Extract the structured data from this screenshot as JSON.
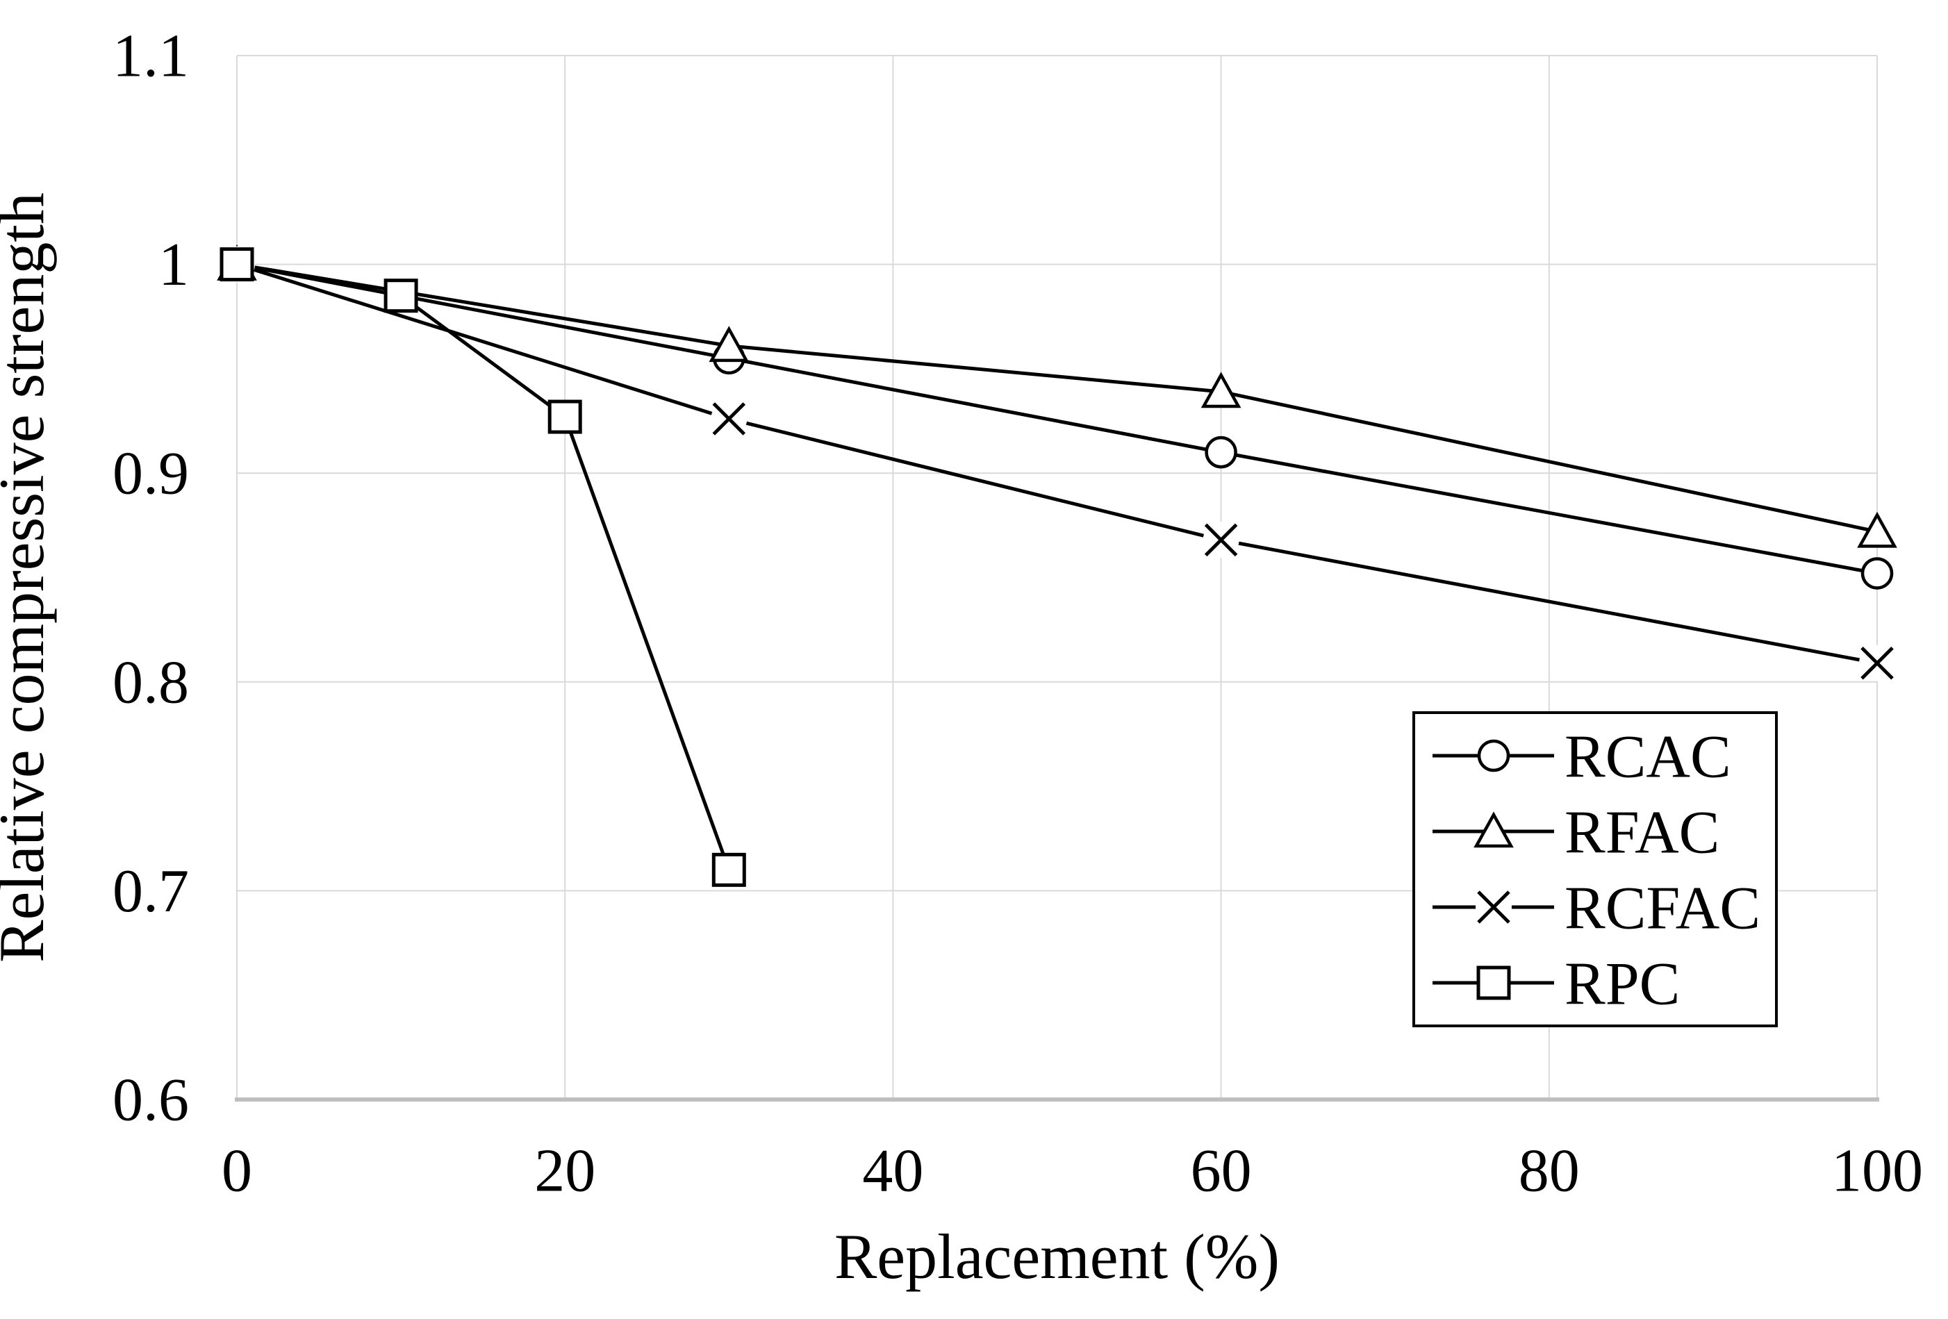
{
  "chart_data": {
    "type": "line",
    "title": "",
    "xlabel": "Replacement (%)",
    "ylabel": "Relative compressive strength",
    "xlim": [
      0,
      100
    ],
    "ylim": [
      0.6,
      1.1
    ],
    "xticks": [
      0,
      20,
      40,
      60,
      80,
      100
    ],
    "xtick_labels": [
      "0",
      "20",
      "40",
      "60",
      "80",
      "100"
    ],
    "yticks": [
      0.6,
      0.7,
      0.8,
      0.9,
      1.0,
      1.1
    ],
    "ytick_labels": [
      "0.6",
      "0.7",
      "0.8",
      "0.9",
      "1",
      "1.1"
    ],
    "grid": true,
    "legend_position": "inside-bottom-right",
    "legend_entries": [
      "RCAC",
      "RFAC",
      "RCFAC",
      "RPC"
    ],
    "series": [
      {
        "name": "RCAC",
        "marker": "circle",
        "x": [
          0,
          30,
          60,
          100
        ],
        "y": [
          1.0,
          0.955,
          0.91,
          0.852
        ]
      },
      {
        "name": "RFAC",
        "marker": "triangle",
        "x": [
          0,
          30,
          60,
          100
        ],
        "y": [
          1.0,
          0.961,
          0.939,
          0.872
        ]
      },
      {
        "name": "RCFAC",
        "marker": "x",
        "x": [
          0,
          30,
          60,
          100
        ],
        "y": [
          1.0,
          0.926,
          0.868,
          0.809
        ]
      },
      {
        "name": "RPC",
        "marker": "square",
        "x": [
          0,
          10,
          20,
          30
        ],
        "y": [
          1.0,
          0.985,
          0.927,
          0.71
        ]
      }
    ],
    "colors": {
      "series": "#000000",
      "gridline": "#D9D9D9",
      "axis_line": "#BFBFBF",
      "text": "#000000",
      "background": "#FFFFFF",
      "marker_fill": "#FFFFFF"
    }
  }
}
